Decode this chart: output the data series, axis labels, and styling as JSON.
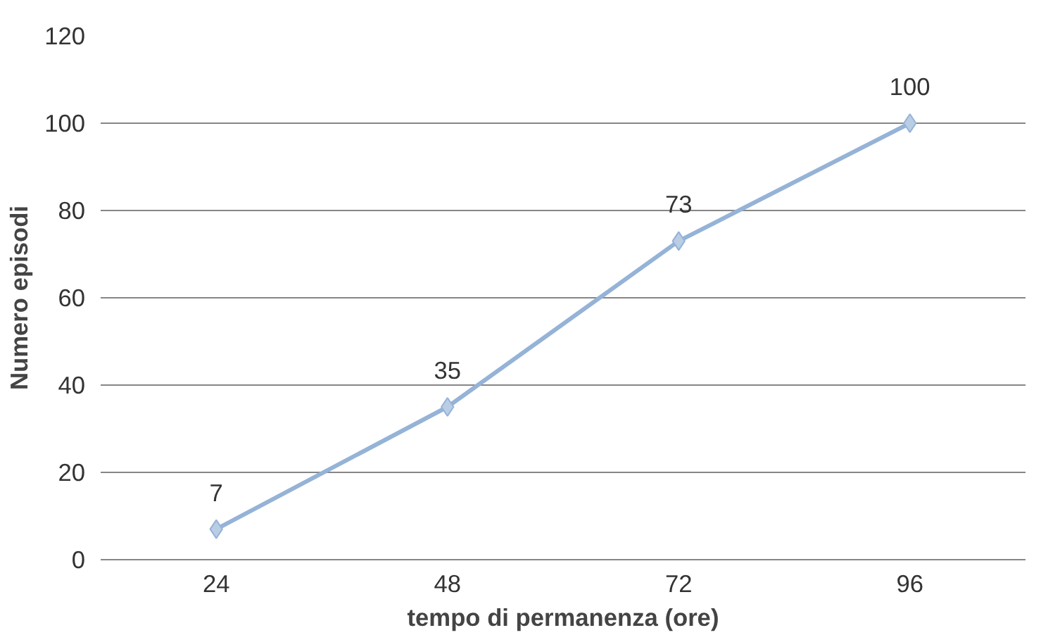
{
  "chart_data": {
    "type": "line",
    "xlabel": "tempo di permanenza (ore)",
    "ylabel": "Numero episodi",
    "categories": [
      "24",
      "48",
      "72",
      "96"
    ],
    "series": [
      {
        "color": "#95b3d7",
        "values": [
          7,
          35,
          73,
          100
        ]
      }
    ],
    "ylim": [
      0,
      120
    ],
    "yticks": [
      0,
      20,
      40,
      60,
      80,
      100,
      120
    ],
    "grid": "y",
    "marker": "diamond",
    "line_style": "solid",
    "data_labels": true
  }
}
